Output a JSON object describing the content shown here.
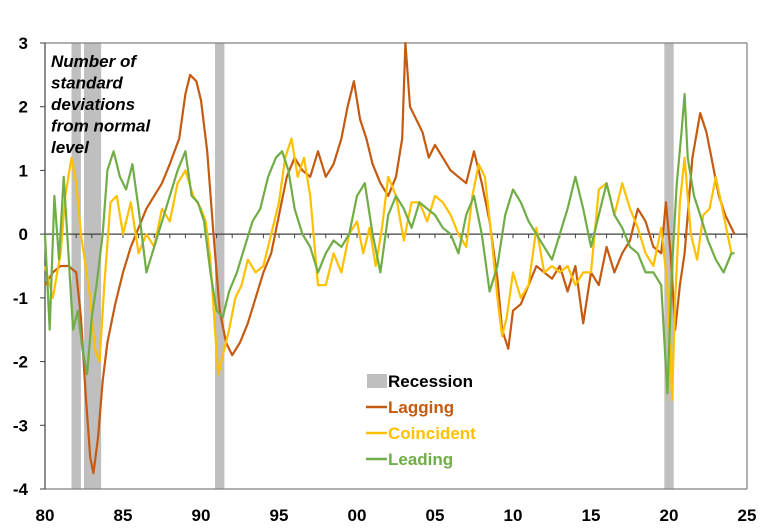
{
  "chart_data": {
    "type": "line",
    "title": "",
    "annotation": [
      "Number of",
      "standard",
      "deviations",
      "from normal",
      "level"
    ],
    "xlabel": "",
    "ylabel": "",
    "xlim": [
      1980,
      2025
    ],
    "ylim": [
      -4,
      3
    ],
    "x_ticks": [
      1980,
      1985,
      1990,
      1995,
      2000,
      2005,
      2010,
      2015,
      2020,
      2025
    ],
    "x_tick_labels": [
      "80",
      "85",
      "90",
      "95",
      "00",
      "05",
      "10",
      "15",
      "20",
      "25"
    ],
    "y_ticks": [
      3,
      2,
      1,
      0,
      -1,
      -2,
      -3,
      -4
    ],
    "y_tick_labels": [
      "3",
      "2",
      "1",
      "0",
      "-1",
      "-2",
      "-3",
      "-4"
    ],
    "legend_position": "bottom-center",
    "recessions": [
      [
        1981.7,
        1982.3
      ],
      [
        1982.5,
        1983.6
      ],
      [
        1990.9,
        1991.5
      ],
      [
        2019.7,
        2020.3
      ]
    ],
    "legend": {
      "recession": "Recession",
      "colors": {
        "recession": "#bfbfbf"
      }
    },
    "series": [
      {
        "name": "Lagging",
        "color": "#c55a11",
        "x": [
          1980,
          1980.5,
          1981,
          1981.5,
          1982,
          1982.3,
          1982.6,
          1982.9,
          1983.1,
          1983.4,
          1983.7,
          1984,
          1984.5,
          1985,
          1985.5,
          1986,
          1986.5,
          1987,
          1987.5,
          1988,
          1988.3,
          1988.6,
          1989,
          1989.3,
          1989.7,
          1990,
          1990.4,
          1990.8,
          1991.2,
          1991.6,
          1992,
          1992.5,
          1993,
          1993.5,
          1994,
          1994.5,
          1995,
          1995.5,
          1996,
          1996.5,
          1997,
          1997.5,
          1998,
          1998.5,
          1999,
          1999.4,
          1999.8,
          2000.2,
          2000.6,
          2001,
          2001.5,
          2002,
          2002.5,
          2002.9,
          2003.1,
          2003.4,
          2003.8,
          2004.2,
          2004.6,
          2005,
          2005.5,
          2006,
          2006.5,
          2007,
          2007.5,
          2008,
          2008.5,
          2009,
          2009.3,
          2009.7,
          2010,
          2010.5,
          2011,
          2011.5,
          2012,
          2012.5,
          2013,
          2013.5,
          2014,
          2014.5,
          2015,
          2015.5,
          2016,
          2016.5,
          2017,
          2017.5,
          2018,
          2018.5,
          2019,
          2019.5,
          2019.8,
          2020.1,
          2020.4,
          2020.7,
          2021,
          2021.5,
          2022,
          2022.4,
          2022.8,
          2023.2,
          2023.6,
          2024,
          2024.2
        ],
        "y": [
          -0.8,
          -0.6,
          -0.5,
          -0.5,
          -0.6,
          -1.3,
          -2.5,
          -3.5,
          -3.75,
          -3.2,
          -2.3,
          -1.7,
          -1.1,
          -0.6,
          -0.2,
          0.1,
          0.4,
          0.6,
          0.8,
          1.1,
          1.3,
          1.5,
          2.2,
          2.5,
          2.4,
          2.1,
          1.3,
          0.0,
          -1.2,
          -1.7,
          -1.9,
          -1.7,
          -1.4,
          -1.0,
          -0.6,
          -0.3,
          0.3,
          0.9,
          1.2,
          1.0,
          0.9,
          1.3,
          0.9,
          1.1,
          1.5,
          2.0,
          2.4,
          1.8,
          1.5,
          1.1,
          0.8,
          0.6,
          0.9,
          1.5,
          3.0,
          2.0,
          1.8,
          1.6,
          1.2,
          1.4,
          1.2,
          1.0,
          0.9,
          0.8,
          1.3,
          0.8,
          0.2,
          -0.7,
          -1.5,
          -1.8,
          -1.2,
          -1.1,
          -0.8,
          -0.5,
          -0.6,
          -0.7,
          -0.5,
          -0.9,
          -0.5,
          -1.4,
          -0.6,
          -0.8,
          -0.2,
          -0.6,
          -0.3,
          -0.1,
          0.4,
          0.2,
          -0.2,
          -0.3,
          0.5,
          -0.3,
          -1.5,
          -0.8,
          -0.3,
          1.2,
          1.9,
          1.6,
          1.1,
          0.6,
          0.3,
          0.1,
          0.0
        ]
      },
      {
        "name": "Coincident",
        "color": "#ffc000",
        "x": [
          1980,
          1980.5,
          1981,
          1981.3,
          1981.7,
          1982,
          1982.3,
          1982.6,
          1982.9,
          1983.2,
          1983.5,
          1983.8,
          1984.2,
          1984.6,
          1985,
          1985.5,
          1986,
          1986.5,
          1987,
          1987.5,
          1988,
          1988.5,
          1989,
          1989.5,
          1990,
          1990.3,
          1990.6,
          1990.9,
          1991.1,
          1991.4,
          1991.8,
          1992.2,
          1992.6,
          1993,
          1993.5,
          1994,
          1994.5,
          1995,
          1995.4,
          1995.8,
          1996.2,
          1996.6,
          1997,
          1997.5,
          1998,
          1998.5,
          1999,
          1999.5,
          2000,
          2000.4,
          2000.8,
          2001.2,
          2001.6,
          2002,
          2002.5,
          2003,
          2003.5,
          2004,
          2004.5,
          2005,
          2005.5,
          2006,
          2006.5,
          2007,
          2007.4,
          2007.8,
          2008.2,
          2008.6,
          2009,
          2009.3,
          2009.6,
          2010,
          2010.5,
          2011,
          2011.5,
          2012,
          2012.5,
          2013,
          2013.5,
          2014,
          2014.5,
          2015,
          2015.5,
          2016,
          2016.5,
          2017,
          2017.5,
          2018,
          2018.5,
          2019,
          2019.5,
          2019.9,
          2020.2,
          2020.4,
          2020.7,
          2021,
          2021.4,
          2021.8,
          2022.2,
          2022.6,
          2023,
          2023.5,
          2024,
          2024.2
        ],
        "y": [
          -0.5,
          -1.0,
          -0.3,
          0.6,
          1.2,
          0.8,
          0.0,
          -0.5,
          -1.0,
          -1.8,
          -2.0,
          -0.8,
          0.5,
          0.6,
          0.0,
          0.5,
          -0.3,
          0.0,
          -0.2,
          0.4,
          0.2,
          0.8,
          1.0,
          0.6,
          0.4,
          0.2,
          -0.4,
          -1.5,
          -2.2,
          -1.9,
          -1.5,
          -1.0,
          -0.8,
          -0.4,
          -0.6,
          -0.5,
          0.0,
          0.5,
          1.2,
          1.5,
          0.9,
          1.2,
          0.6,
          -0.8,
          -0.8,
          -0.3,
          -0.6,
          0.0,
          0.2,
          -0.3,
          0.1,
          -0.5,
          0.1,
          0.9,
          0.6,
          -0.1,
          0.5,
          0.5,
          0.2,
          0.6,
          0.5,
          0.3,
          0.0,
          -0.2,
          0.6,
          1.1,
          0.9,
          0.0,
          -1.0,
          -1.6,
          -1.3,
          -0.6,
          -1.0,
          -0.8,
          0.1,
          -0.6,
          -0.5,
          -0.6,
          -0.5,
          -0.8,
          -0.6,
          -0.6,
          0.7,
          0.8,
          0.3,
          0.8,
          0.4,
          0.1,
          -0.3,
          -0.5,
          0.1,
          -0.8,
          -2.6,
          -1.0,
          0.5,
          1.2,
          0.0,
          -0.4,
          0.3,
          0.4,
          0.9,
          0.3,
          -0.3,
          -0.3
        ]
      },
      {
        "name": "Leading",
        "color": "#70ad47",
        "x": [
          1980,
          1980.3,
          1980.6,
          1980.9,
          1981.2,
          1981.5,
          1981.8,
          1982.1,
          1982.4,
          1982.7,
          1983,
          1983.3,
          1983.7,
          1984,
          1984.4,
          1984.8,
          1985.2,
          1985.6,
          1986,
          1986.5,
          1987,
          1987.5,
          1988,
          1988.5,
          1989,
          1989.4,
          1989.8,
          1990.2,
          1990.6,
          1991,
          1991.4,
          1991.8,
          1992.3,
          1992.8,
          1993.3,
          1993.8,
          1994.3,
          1994.8,
          1995.2,
          1995.6,
          1996,
          1996.5,
          1997,
          1997.5,
          1998,
          1998.5,
          1999,
          1999.5,
          2000,
          2000.5,
          2001,
          2001.5,
          2002,
          2002.5,
          2003,
          2003.5,
          2004,
          2004.5,
          2005,
          2005.5,
          2006,
          2006.5,
          2007,
          2007.5,
          2008,
          2008.5,
          2009,
          2009.5,
          2010,
          2010.5,
          2011,
          2011.5,
          2012,
          2012.5,
          2013,
          2013.5,
          2014,
          2014.5,
          2015,
          2015.5,
          2016,
          2016.5,
          2017,
          2017.5,
          2018,
          2018.5,
          2019,
          2019.5,
          2019.9,
          2020.2,
          2020.5,
          2020.8,
          2021,
          2021.2,
          2021.6,
          2022,
          2022.5,
          2023,
          2023.5,
          2024,
          2024.2
        ],
        "y": [
          0.0,
          -1.5,
          0.6,
          -0.4,
          0.9,
          -0.3,
          -1.5,
          -1.2,
          -1.8,
          -2.2,
          -1.3,
          -0.8,
          0.0,
          1.0,
          1.3,
          0.9,
          0.7,
          1.1,
          0.4,
          -0.6,
          -0.2,
          0.2,
          0.6,
          1.0,
          1.3,
          0.6,
          0.5,
          0.2,
          -0.6,
          -1.2,
          -1.3,
          -0.9,
          -0.6,
          -0.2,
          0.2,
          0.4,
          0.9,
          1.2,
          1.3,
          1.0,
          0.4,
          0.0,
          -0.2,
          -0.6,
          -0.3,
          -0.1,
          -0.2,
          0.0,
          0.6,
          0.8,
          0.0,
          -0.6,
          0.3,
          0.6,
          0.4,
          0.1,
          0.5,
          0.4,
          0.3,
          0.1,
          0.0,
          -0.3,
          0.3,
          0.6,
          0.0,
          -0.9,
          -0.5,
          0.3,
          0.7,
          0.5,
          0.2,
          0.0,
          -0.2,
          -0.4,
          0.0,
          0.4,
          0.9,
          0.4,
          -0.2,
          0.3,
          0.8,
          0.3,
          0.1,
          -0.2,
          -0.3,
          -0.6,
          -0.6,
          -0.8,
          -2.5,
          -0.5,
          0.8,
          1.6,
          2.2,
          1.2,
          0.6,
          0.3,
          -0.1,
          -0.4,
          -0.6,
          -0.3,
          -0.3
        ]
      }
    ]
  }
}
